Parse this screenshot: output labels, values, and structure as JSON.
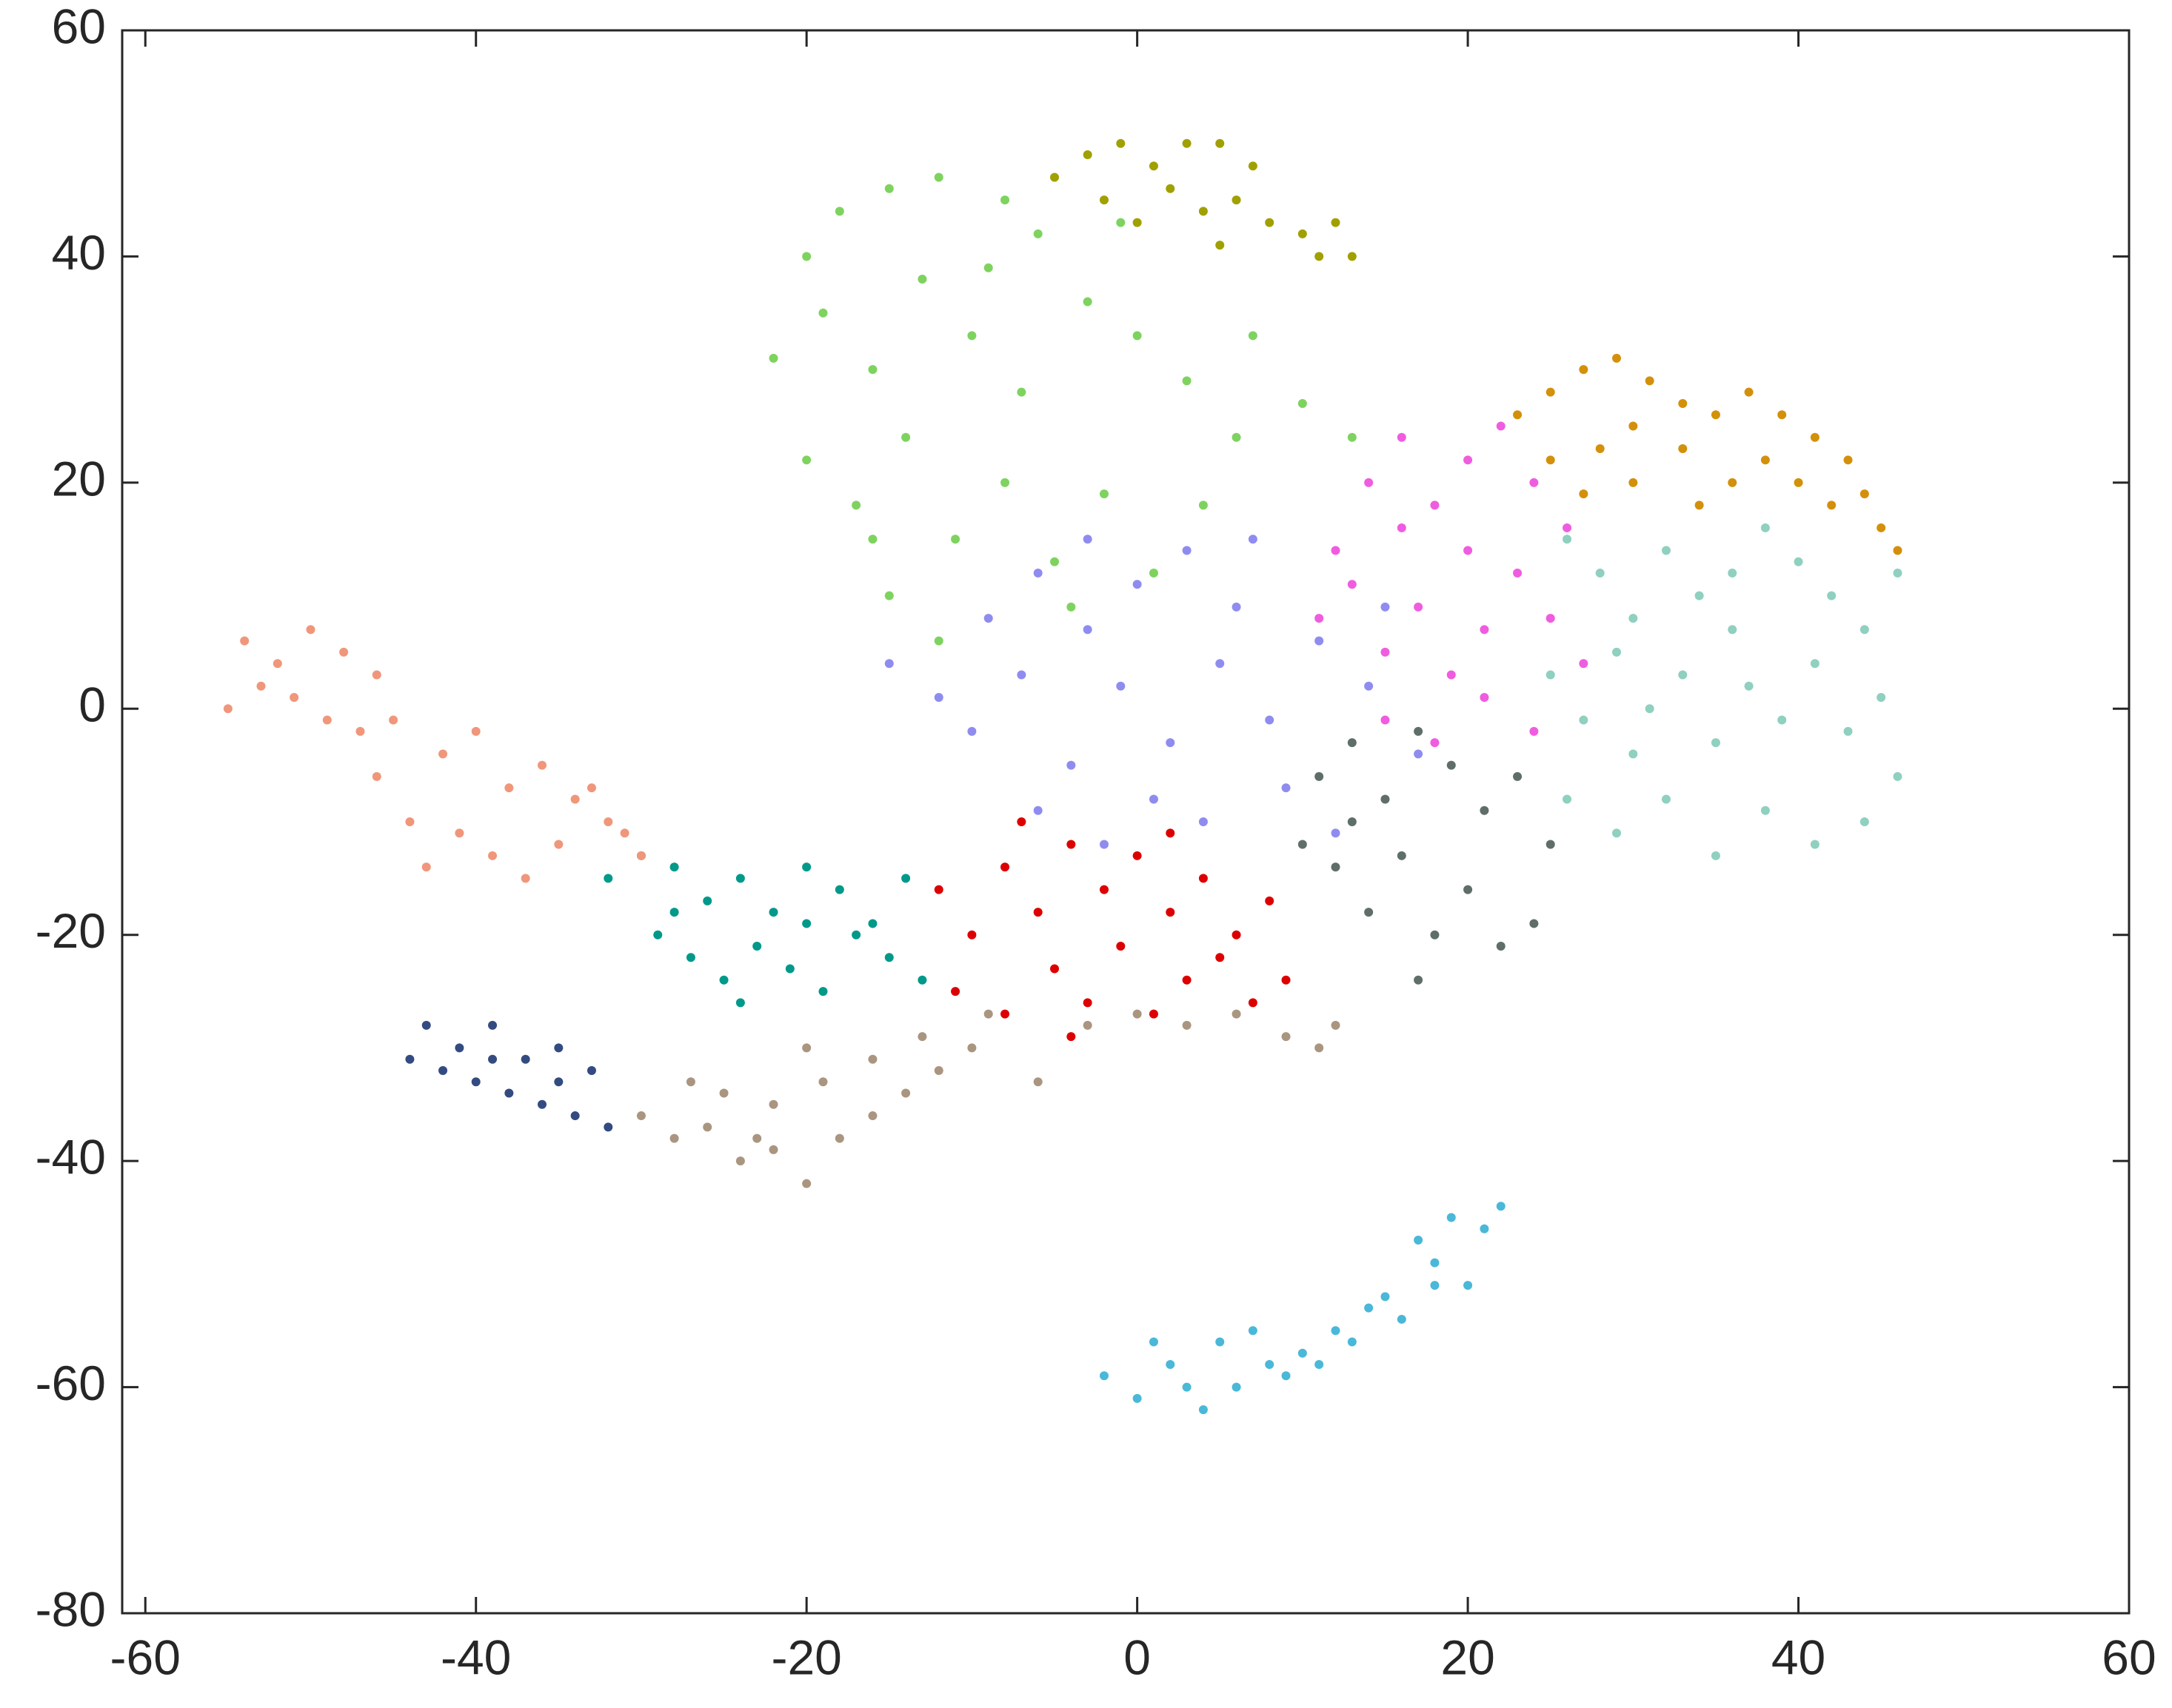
{
  "chart_data": {
    "type": "scatter",
    "xlim": [
      -61.4,
      60
    ],
    "ylim": [
      -80,
      60
    ],
    "xticks": [
      -60,
      -40,
      -20,
      0,
      20,
      40,
      60
    ],
    "yticks": [
      -80,
      -60,
      -40,
      -20,
      0,
      20,
      40,
      60
    ],
    "grid": false,
    "series": [
      {
        "color": "#7ed35f",
        "x": [
          -20,
          -18,
          -15,
          -12,
          -8,
          -6,
          -22,
          -19,
          -16,
          -13,
          -10,
          -7,
          -3,
          0,
          3,
          6,
          -20,
          -17,
          -14,
          -11,
          -8,
          -5,
          -2,
          1,
          4,
          -15,
          -12,
          -4,
          7,
          10,
          13,
          -1,
          -9,
          -16
        ],
        "y": [
          40,
          44,
          46,
          47,
          45,
          42,
          31,
          35,
          30,
          38,
          33,
          28,
          36,
          33,
          29,
          24,
          22,
          18,
          24,
          15,
          20,
          13,
          19,
          12,
          18,
          10,
          6,
          9,
          33,
          27,
          24,
          43,
          39,
          15
        ]
      },
      {
        "color": "#a0a000",
        "x": [
          -5,
          -3,
          -1,
          1,
          3,
          5,
          2,
          4,
          6,
          8,
          10,
          12,
          13,
          -2,
          0,
          7,
          11,
          5
        ],
        "y": [
          47,
          49,
          50,
          48,
          50,
          50,
          46,
          44,
          45,
          43,
          42,
          43,
          40,
          45,
          43,
          48,
          40,
          41
        ]
      },
      {
        "color": "#d4900a",
        "x": [
          23,
          25,
          27,
          29,
          31,
          33,
          35,
          37,
          39,
          41,
          43,
          44,
          45,
          46,
          25,
          28,
          30,
          33,
          36,
          38,
          40,
          42,
          30,
          34,
          27
        ],
        "y": [
          26,
          28,
          30,
          31,
          29,
          27,
          26,
          28,
          26,
          24,
          22,
          19,
          16,
          14,
          22,
          23,
          25,
          23,
          20,
          22,
          20,
          18,
          20,
          18,
          19
        ]
      },
      {
        "color": "#f05ce0",
        "x": [
          12,
          14,
          16,
          18,
          20,
          22,
          24,
          26,
          11,
          13,
          15,
          17,
          19,
          21,
          23,
          25,
          27,
          15,
          18,
          21,
          24,
          20,
          16
        ],
        "y": [
          14,
          20,
          24,
          18,
          22,
          25,
          20,
          16,
          8,
          11,
          5,
          9,
          3,
          7,
          12,
          8,
          4,
          -1,
          -3,
          1,
          -2,
          14,
          16
        ]
      },
      {
        "color": "#8fd0c0",
        "x": [
          26,
          28,
          30,
          32,
          34,
          36,
          38,
          40,
          42,
          44,
          46,
          25,
          27,
          29,
          31,
          33,
          35,
          37,
          39,
          41,
          43,
          45,
          46,
          26,
          29,
          32,
          35,
          38,
          41,
          44,
          30,
          36
        ],
        "y": [
          15,
          12,
          8,
          14,
          10,
          12,
          16,
          13,
          10,
          7,
          12,
          3,
          -1,
          5,
          0,
          3,
          -3,
          2,
          -1,
          4,
          -2,
          1,
          -6,
          -8,
          -11,
          -8,
          -13,
          -9,
          -12,
          -10,
          -4,
          7
        ]
      },
      {
        "color": "#8f8cf0",
        "x": [
          -15,
          -12,
          -9,
          -6,
          -3,
          0,
          3,
          6,
          -10,
          -7,
          -4,
          -1,
          2,
          5,
          8,
          11,
          14,
          17,
          -6,
          -2,
          1,
          4,
          9,
          12,
          -3,
          7,
          15
        ],
        "y": [
          4,
          1,
          8,
          12,
          15,
          11,
          14,
          9,
          -2,
          3,
          -5,
          2,
          -3,
          4,
          -1,
          6,
          2,
          -4,
          -9,
          -12,
          -8,
          -10,
          -7,
          -11,
          7,
          15,
          9
        ]
      },
      {
        "color": "#5f6e6a",
        "x": [
          11,
          13,
          15,
          17,
          19,
          21,
          23,
          25,
          12,
          14,
          16,
          18,
          20,
          22,
          24,
          10,
          17,
          13
        ],
        "y": [
          -6,
          -3,
          -8,
          -2,
          -5,
          -9,
          -6,
          -12,
          -14,
          -18,
          -13,
          -20,
          -16,
          -21,
          -19,
          -12,
          -24,
          -10
        ]
      },
      {
        "color": "#dd0000",
        "x": [
          -12,
          -10,
          -8,
          -6,
          -4,
          -2,
          0,
          2,
          4,
          6,
          8,
          -11,
          -8,
          -5,
          -3,
          -1,
          1,
          3,
          5,
          7,
          9,
          -7,
          -4,
          2
        ],
        "y": [
          -16,
          -20,
          -14,
          -18,
          -12,
          -16,
          -13,
          -18,
          -15,
          -20,
          -17,
          -25,
          -27,
          -23,
          -26,
          -21,
          -27,
          -24,
          -22,
          -26,
          -24,
          -10,
          -29,
          -11
        ]
      },
      {
        "color": "#00998a",
        "x": [
          -32,
          -30,
          -28,
          -26,
          -24,
          -22,
          -20,
          -18,
          -16,
          -14,
          -29,
          -27,
          -25,
          -23,
          -21,
          -19,
          -17,
          -15,
          -13,
          -28,
          -24,
          -20
        ],
        "y": [
          -15,
          -13,
          -14,
          -17,
          -15,
          -18,
          -14,
          -16,
          -19,
          -15,
          -20,
          -22,
          -24,
          -21,
          -23,
          -25,
          -20,
          -22,
          -24,
          -18,
          -26,
          -19
        ]
      },
      {
        "color": "#f0967a",
        "x": [
          -55,
          -54,
          -52,
          -50,
          -48,
          -46,
          -51,
          -49,
          -47,
          -45,
          -44,
          -42,
          -40,
          -38,
          -36,
          -34,
          -32,
          -30,
          -43,
          -41,
          -39,
          -37,
          -35,
          -33,
          -31,
          -53,
          -46
        ],
        "y": [
          0,
          6,
          4,
          7,
          5,
          3,
          1,
          -1,
          -2,
          -1,
          -10,
          -4,
          -2,
          -7,
          -5,
          -8,
          -10,
          -13,
          -14,
          -11,
          -13,
          -15,
          -12,
          -7,
          -11,
          2,
          -6
        ]
      },
      {
        "color": "#334b80",
        "x": [
          -43,
          -41,
          -39,
          -37,
          -35,
          -33,
          -42,
          -40,
          -38,
          -36,
          -34,
          -32,
          -44,
          -39,
          -35
        ],
        "y": [
          -28,
          -30,
          -28,
          -31,
          -30,
          -32,
          -32,
          -33,
          -34,
          -35,
          -36,
          -37,
          -31,
          -31,
          -33
        ]
      },
      {
        "color": "#aa9580",
        "x": [
          -30,
          -28,
          -26,
          -24,
          -22,
          -20,
          -18,
          -16,
          -14,
          -12,
          -10,
          -27,
          -25,
          -22,
          -19,
          -16,
          -13,
          -9,
          -6,
          -3,
          0,
          3,
          6,
          9,
          11,
          12,
          -20,
          -23
        ],
        "y": [
          -36,
          -38,
          -37,
          -40,
          -39,
          -42,
          -38,
          -36,
          -34,
          -32,
          -30,
          -33,
          -34,
          -35,
          -33,
          -31,
          -29,
          -27,
          -33,
          -28,
          -27,
          -28,
          -27,
          -29,
          -30,
          -28,
          -30,
          -38
        ]
      },
      {
        "color": "#4ab8d8",
        "x": [
          -2,
          0,
          2,
          4,
          6,
          8,
          10,
          12,
          14,
          16,
          18,
          17,
          19,
          21,
          22,
          20,
          5,
          7,
          9,
          11,
          15,
          13,
          3,
          1,
          18
        ],
        "y": [
          -59,
          -61,
          -58,
          -62,
          -60,
          -58,
          -57,
          -55,
          -53,
          -54,
          -51,
          -47,
          -45,
          -46,
          -44,
          -51,
          -56,
          -55,
          -59,
          -58,
          -52,
          -56,
          -60,
          -56,
          -49
        ]
      }
    ]
  }
}
